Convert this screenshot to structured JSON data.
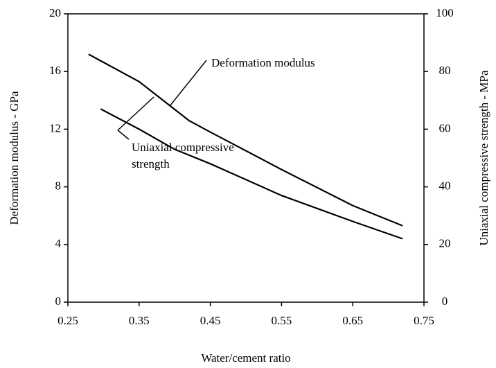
{
  "chart_data": {
    "type": "line",
    "x_label": "Water/cement ratio",
    "y_label": "Deformation modulus - GPa",
    "y2_label": "Uniaxial compressive strength - MPa",
    "xlim": [
      0.25,
      0.75
    ],
    "xticks": [
      0.25,
      0.35,
      0.45,
      0.55,
      0.65,
      0.75
    ],
    "ylim": [
      0,
      20
    ],
    "yticks": [
      0,
      4,
      8,
      12,
      16,
      20
    ],
    "y2lim": [
      0,
      100
    ],
    "y2ticks": [
      0,
      20,
      40,
      60,
      80,
      100
    ],
    "series": [
      {
        "name": "Deformation modulus",
        "color": "#000000",
        "x": [
          0.279,
          0.35,
          0.42,
          0.45,
          0.55,
          0.65,
          0.72
        ],
        "values": [
          17.2,
          15.3,
          12.6,
          11.8,
          9.2,
          6.7,
          5.3
        ]
      },
      {
        "name": "Uniaxial compressive strength",
        "color": "#000000",
        "axis": "y2",
        "x": [
          0.296,
          0.35,
          0.4,
          0.45,
          0.55,
          0.65,
          0.72
        ],
        "values": [
          67,
          60,
          53,
          48,
          37,
          28,
          22
        ]
      }
    ],
    "annotations": [
      {
        "lines": [
          "Deformation modulus"
        ]
      },
      {
        "lines": [
          "Uniaxial compressive",
          "strength"
        ]
      }
    ]
  }
}
